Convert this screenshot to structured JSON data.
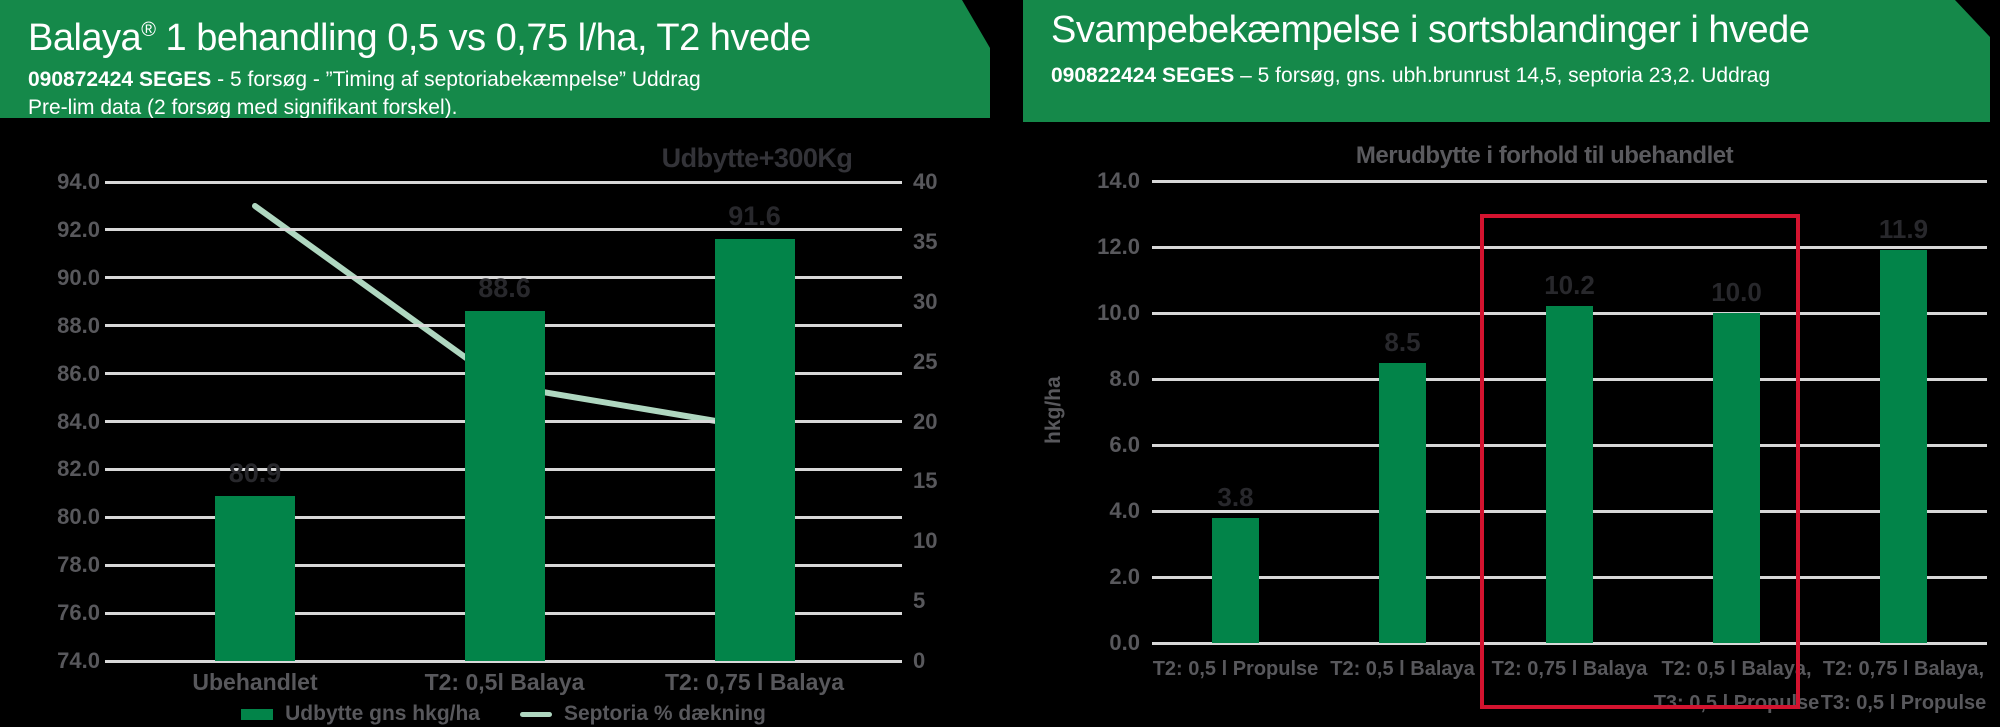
{
  "page": {
    "background": "#000000",
    "accent_green": "#15894A"
  },
  "left_panel": {
    "header": {
      "bg_color": "#15894A",
      "title_brand": "Balaya",
      "title_reg": "®",
      "title_rest": " 1 behandling 0,5 vs 0,75 l/ha, T2 hvede",
      "subtitle_bold": "090872424 SEGES",
      "subtitle_rest": " - 5 forsøg - ”Timing af septoriabekæmpelse” Uddrag",
      "subtitle_line2": "Pre-lim data (2 forsøg med signifikant forskel)."
    }
  },
  "right_panel": {
    "header": {
      "bg_color": "#15894A",
      "title": "Svampebekæmpelse i sortsblandinger i hvede",
      "subtitle_bold": "090822424 SEGES",
      "subtitle_rest": " – 5 forsøg, gns. ubh.brunrust 14,5, septoria 23,2. Uddrag"
    }
  },
  "chart_data": [
    {
      "type": "bar",
      "title": "Udbytte+300Kg",
      "categories": [
        "Ubehandlet",
        "T2: 0,5l Balaya",
        "T2: 0,75 l Balaya"
      ],
      "series": [
        {
          "name": "Udbytte gns hkg/ha",
          "render": "bar",
          "axis": "left",
          "color": "#028449",
          "values": [
            80.9,
            88.6,
            91.6
          ],
          "value_labels": [
            "80.9",
            "88.6",
            "91.6"
          ]
        },
        {
          "name": "Septoria % dækning",
          "render": "line",
          "axis": "right",
          "color": "#AFD7C0",
          "values": [
            38,
            23,
            19.5
          ]
        }
      ],
      "left_axis": {
        "min": 74,
        "max": 94,
        "step": 2,
        "tick_labels": [
          "94.0",
          "92.0",
          "90.0",
          "88.0",
          "86.0",
          "84.0",
          "82.0",
          "80.0",
          "78.0",
          "76.0",
          "74.0"
        ]
      },
      "right_axis": {
        "min": 0,
        "max": 40,
        "step": 5,
        "tick_labels": [
          "40",
          "35",
          "30",
          "25",
          "20",
          "15",
          "10",
          "5",
          "0"
        ]
      },
      "grid": true,
      "legend_position": "bottom"
    },
    {
      "type": "bar",
      "title": "Merudbytte i forhold til ubehandlet",
      "ylabel": "hkg/ha",
      "categories": [
        [
          "T2: 0,5 l Propulse"
        ],
        [
          "T2: 0,5 l Balaya"
        ],
        [
          "T2: 0,75 l Balaya"
        ],
        [
          "T2: 0,5 l Balaya,",
          "T3: 0,5 l Propulse"
        ],
        [
          "T2: 0,75 l Balaya,",
          "T3: 0,5 l Propulse"
        ]
      ],
      "values": [
        3.8,
        8.5,
        10.2,
        10.0,
        11.9
      ],
      "value_labels": [
        "3.8",
        "8.5",
        "10.2",
        "10.0",
        "11.9"
      ],
      "bar_color": "#028449",
      "y_axis": {
        "min": 0,
        "max": 14,
        "step": 2,
        "tick_labels": [
          "14.0",
          "12.0",
          "10.0",
          "8.0",
          "6.0",
          "4.0",
          "2.0",
          "0.0"
        ]
      },
      "grid": true,
      "highlight_box": {
        "color": "#D3132F",
        "categories": [
          "T2: 0,75 l Balaya",
          "T2: 0,5 l Balaya, T3: 0,5 l Propulse"
        ]
      }
    }
  ],
  "style_colors": {
    "grid": "#D8D8D8",
    "tick_text": "#58585C",
    "value_text": "#28282C"
  }
}
